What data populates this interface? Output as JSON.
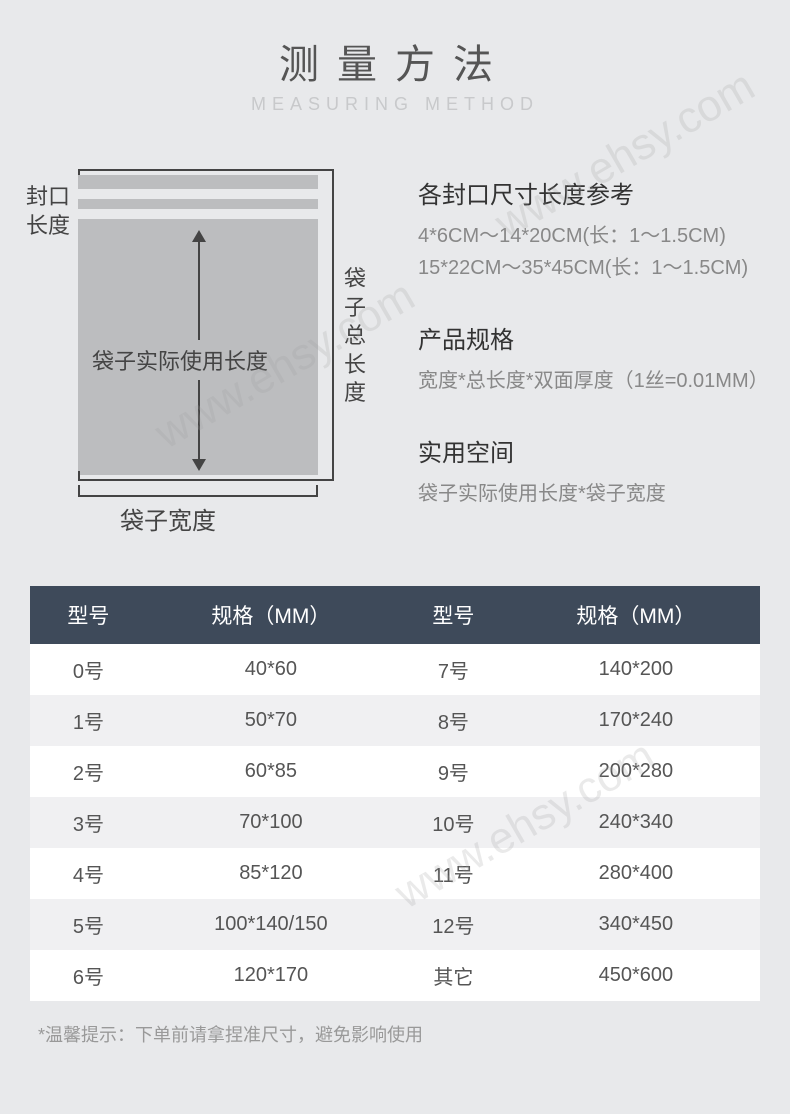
{
  "header": {
    "title_cn": "测量方法",
    "title_en": "MEASURING METHOD"
  },
  "diagram": {
    "seal_label_l1": "封口",
    "seal_label_l2": "长度",
    "usage_label": "袋子实际使用长度",
    "total_label": "袋子总长度",
    "width_label": "袋子宽度"
  },
  "info": {
    "seal_title": "各封口尺寸长度参考",
    "seal_line1": "4*6CM～14*20CM(长：1～1.5CM)",
    "seal_line2": "15*22CM～35*45CM(长：1～1.5CM)",
    "spec_title": "产品规格",
    "spec_text": "宽度*总长度*双面厚度（1丝=0.01MM）",
    "space_title": "实用空间",
    "space_text": "袋子实际使用长度*袋子宽度"
  },
  "table": {
    "headers": [
      "型号",
      "规格（MM）",
      "型号",
      "规格（MM）"
    ],
    "rows": [
      [
        "0号",
        "40*60",
        "7号",
        "140*200"
      ],
      [
        "1号",
        "50*70",
        "8号",
        "170*240"
      ],
      [
        "2号",
        "60*85",
        "9号",
        "200*280"
      ],
      [
        "3号",
        "70*100",
        "10号",
        "240*340"
      ],
      [
        "4号",
        "85*120",
        "11号",
        "280*400"
      ],
      [
        "5号",
        "100*140/150",
        "12号",
        "340*450"
      ],
      [
        "6号",
        "120*170",
        "其它",
        "450*600"
      ]
    ]
  },
  "footnote": "*温馨提示：下单前请拿捏准尺寸，避免影响使用",
  "watermark": "www.ehsy.com",
  "colors": {
    "page_bg": "#e8e9eb",
    "bag_fill": "#bcbdbf",
    "table_header_bg": "#3e4a5a",
    "table_alt_row": "#f0f0f2",
    "text_dark": "#444444",
    "text_muted": "#888888"
  }
}
